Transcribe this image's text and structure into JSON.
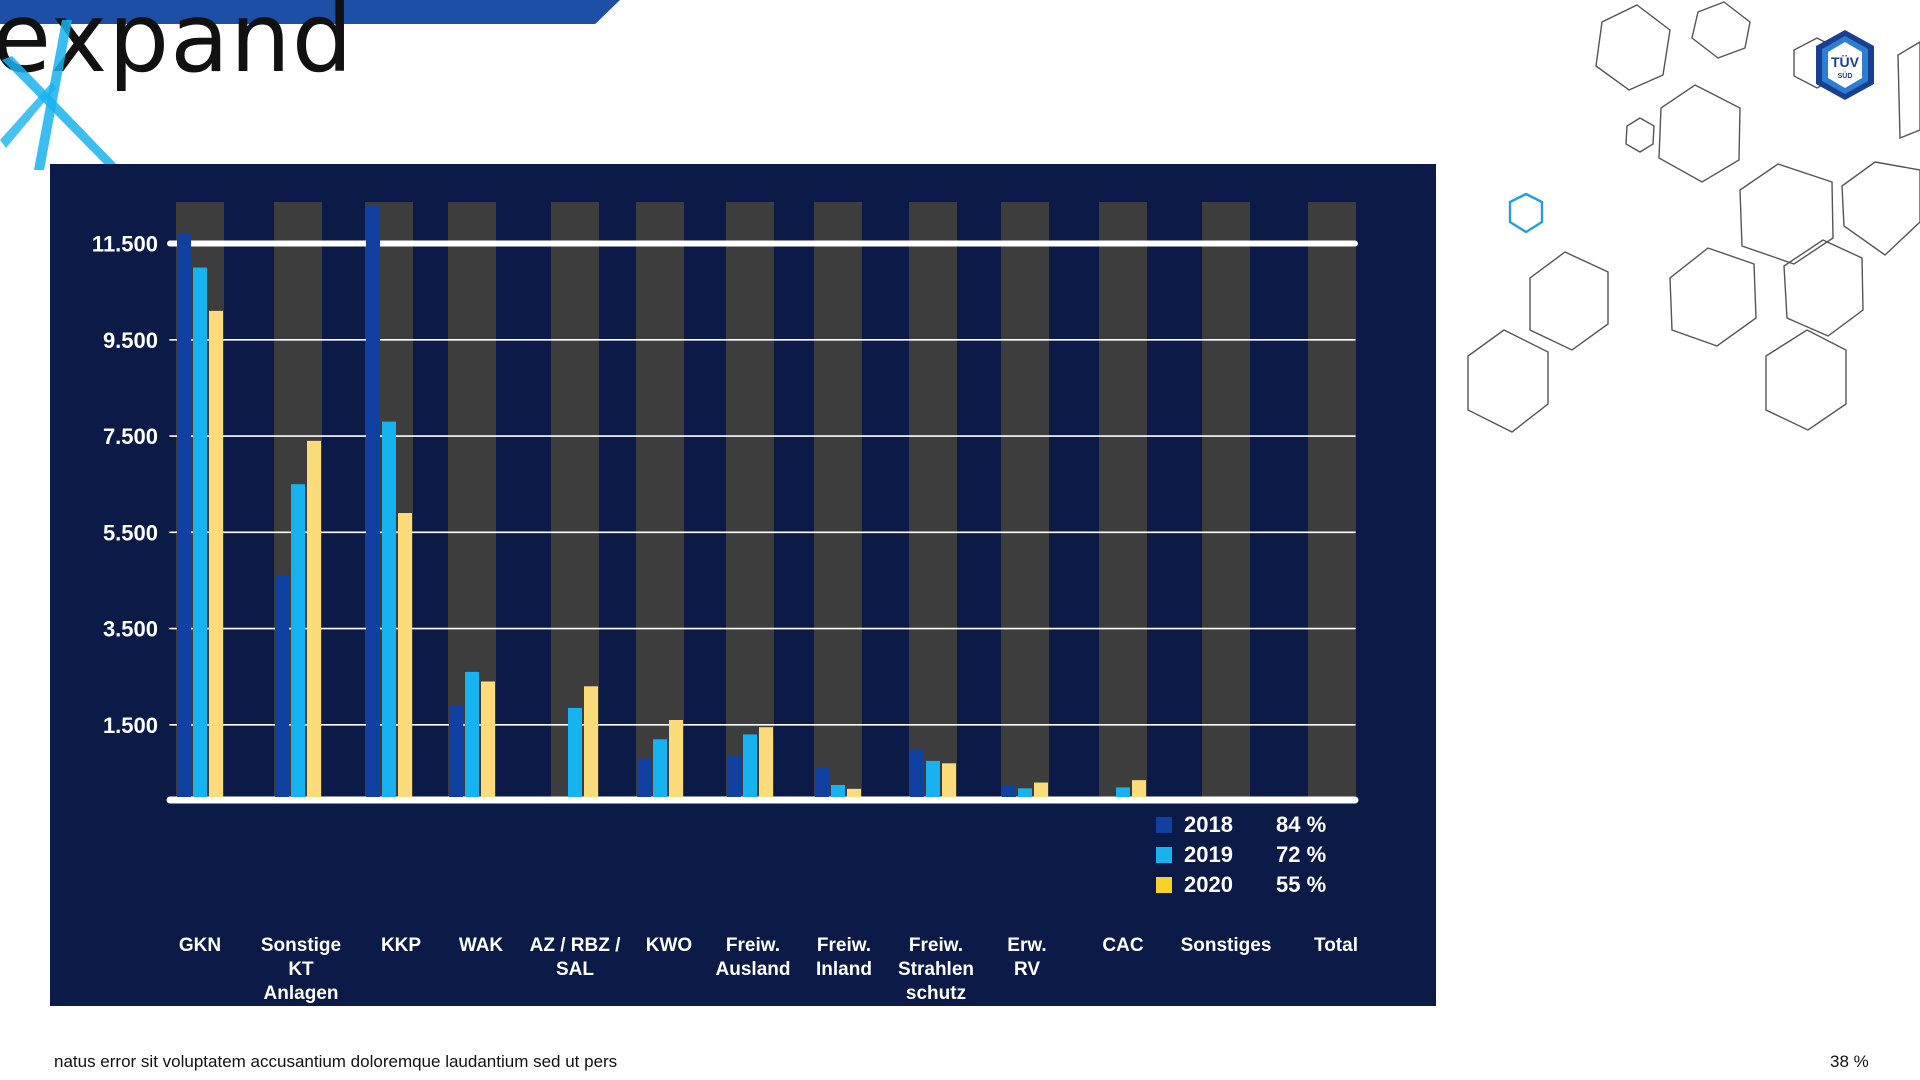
{
  "branding": {
    "logo_text": "expand",
    "badge_logo_name": "tuv-sud-logo"
  },
  "footer": {
    "text": "natus error sit voluptatem accusantium doloremque laudantium sed ut pers",
    "zoom": "38 %"
  },
  "colors": {
    "panel_bg": "#0b1a47",
    "track": "#3d3d3d",
    "series_2018": "#1040a0",
    "series_2019": "#17b3f0",
    "series_2020": "#fbdb7a",
    "legend_2020": "#f8d22a"
  },
  "chart_data": {
    "type": "bar",
    "categories": [
      "GKN",
      "Sonstige\nKT\nAnlagen",
      "KKP",
      "WAK",
      "AZ / RBZ /\nSAL",
      "KWO",
      "Freiw.\nAusland",
      "Freiw.\nInland",
      "Freiw.\nStrahlen\nschutz",
      "Erw.\nRV",
      "CAC",
      "Sonstiges",
      "Total"
    ],
    "series": [
      {
        "name": "2018",
        "percent": "84 %",
        "values": [
          11700,
          4600,
          12300,
          1900,
          0,
          800,
          850,
          600,
          1000,
          250,
          0,
          0,
          0
        ]
      },
      {
        "name": "2019",
        "percent": "72 %",
        "values": [
          11000,
          6500,
          7800,
          2600,
          1850,
          1200,
          1300,
          250,
          750,
          180,
          200,
          0,
          0
        ]
      },
      {
        "name": "2020",
        "percent": "55 %",
        "values": [
          10100,
          7400,
          5900,
          2400,
          2300,
          1600,
          1450,
          170,
          700,
          300,
          350,
          0,
          0
        ]
      }
    ],
    "y_ticks": [
      "11.500",
      "9.500",
      "7.500",
      "5.500",
      "3.500",
      "1.500"
    ],
    "y_tick_values": [
      11500,
      9500,
      7500,
      5500,
      3500,
      1500
    ],
    "ylim": [
      0,
      12300
    ],
    "grid": true,
    "legend_position": "bottom-right"
  }
}
